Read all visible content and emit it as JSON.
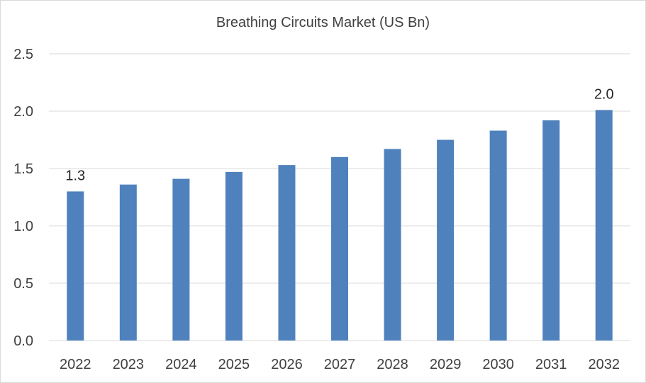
{
  "chart_data": {
    "type": "bar",
    "title": "Breathing Circuits Market (US Bn)",
    "xlabel": "",
    "ylabel": "",
    "categories": [
      "2022",
      "2023",
      "2024",
      "2025",
      "2026",
      "2027",
      "2028",
      "2029",
      "2030",
      "2031",
      "2032"
    ],
    "values": [
      1.3,
      1.36,
      1.41,
      1.47,
      1.53,
      1.6,
      1.67,
      1.75,
      1.83,
      1.92,
      2.01
    ],
    "data_labels": {
      "0": "1.3",
      "10": "2.0"
    },
    "ylim": [
      0,
      2.5
    ],
    "yticks": [
      "0.0",
      "0.5",
      "1.0",
      "1.5",
      "2.0",
      "2.5"
    ],
    "ytick_values": [
      0,
      0.5,
      1.0,
      1.5,
      2.0,
      2.5
    ],
    "grid": true,
    "legend": "none",
    "colors": {
      "bar": "#4f81bd",
      "grid": "#d9d9d9",
      "text": "#404040"
    }
  }
}
